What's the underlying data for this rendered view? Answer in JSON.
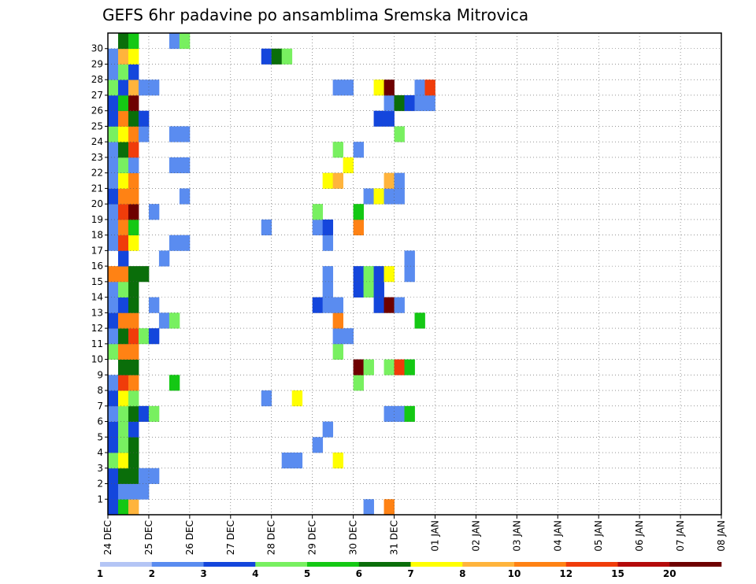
{
  "chart_data": {
    "type": "heatmap",
    "title": "GEFS 6hr padavine po ansamblima Sremska Mitrovica",
    "xlabel": "",
    "ylabel": "",
    "x_ticks": [
      "24 DEC",
      "25 DEC",
      "26 DEC",
      "27 DEC",
      "28 DEC",
      "29 DEC",
      "30 DEC",
      "31 DEC",
      "01 JAN",
      "02 JAN",
      "03 JAN",
      "04 JAN",
      "05 JAN",
      "06 JAN",
      "07 JAN",
      "08 JAN"
    ],
    "y_ticks": [
      "1",
      "2",
      "3",
      "4",
      "5",
      "6",
      "7",
      "8",
      "9",
      "10",
      "11",
      "12",
      "13",
      "14",
      "15",
      "16",
      "17",
      "18",
      "19",
      "20",
      "21",
      "22",
      "23",
      "24",
      "25",
      "26",
      "27",
      "28",
      "29",
      "30"
    ],
    "time_steps_per_day": 4,
    "members": 31,
    "grid": true,
    "colorbar": {
      "labels": [
        "1",
        "2",
        "3",
        "4",
        "5",
        "6",
        "7",
        "8",
        "10",
        "12",
        "15",
        "20"
      ],
      "colors": [
        "#b4c5f5",
        "#5a8cf0",
        "#1446dc",
        "#78f060",
        "#14c814",
        "#0a6e0a",
        "#ffff00",
        "#ffb43c",
        "#ff8214",
        "#f03c0a",
        "#b40a0a",
        "#6e0000"
      ]
    },
    "cells": [
      [
        0,
        0,
        2
      ],
      [
        0,
        1,
        4
      ],
      [
        0,
        2,
        7
      ],
      [
        0,
        25,
        1
      ],
      [
        0,
        27,
        8
      ],
      [
        1,
        0,
        2
      ],
      [
        1,
        1,
        1
      ],
      [
        1,
        2,
        1
      ],
      [
        1,
        3,
        1
      ],
      [
        2,
        0,
        2
      ],
      [
        2,
        1,
        5
      ],
      [
        2,
        2,
        5
      ],
      [
        2,
        3,
        1
      ],
      [
        2,
        4,
        1
      ],
      [
        3,
        0,
        3
      ],
      [
        3,
        1,
        6
      ],
      [
        3,
        2,
        5
      ],
      [
        3,
        17,
        1
      ],
      [
        3,
        18,
        1
      ],
      [
        3,
        22,
        6
      ],
      [
        4,
        0,
        2
      ],
      [
        4,
        1,
        3
      ],
      [
        4,
        2,
        5
      ],
      [
        4,
        20,
        1
      ],
      [
        5,
        0,
        2
      ],
      [
        5,
        1,
        3
      ],
      [
        5,
        2,
        2
      ],
      [
        5,
        21,
        1
      ],
      [
        6,
        0,
        1
      ],
      [
        6,
        1,
        3
      ],
      [
        6,
        2,
        5
      ],
      [
        6,
        3,
        2
      ],
      [
        6,
        4,
        3
      ],
      [
        6,
        27,
        1
      ],
      [
        6,
        28,
        1
      ],
      [
        6,
        29,
        4
      ],
      [
        7,
        0,
        2
      ],
      [
        7,
        1,
        6
      ],
      [
        7,
        2,
        3
      ],
      [
        7,
        15,
        1
      ],
      [
        7,
        18,
        6
      ],
      [
        8,
        0,
        1
      ],
      [
        8,
        1,
        9
      ],
      [
        8,
        2,
        8
      ],
      [
        8,
        6,
        4
      ],
      [
        8,
        24,
        3
      ],
      [
        9,
        1,
        5
      ],
      [
        9,
        2,
        5
      ],
      [
        9,
        24,
        11
      ],
      [
        9,
        25,
        3
      ],
      [
        9,
        27,
        3
      ],
      [
        9,
        28,
        9
      ],
      [
        9,
        29,
        4
      ],
      [
        10,
        0,
        3
      ],
      [
        10,
        1,
        8
      ],
      [
        10,
        2,
        8
      ],
      [
        10,
        22,
        3
      ],
      [
        11,
        0,
        1
      ],
      [
        11,
        1,
        5
      ],
      [
        11,
        2,
        9
      ],
      [
        11,
        3,
        3
      ],
      [
        11,
        4,
        2
      ],
      [
        11,
        22,
        1
      ],
      [
        11,
        23,
        1
      ],
      [
        12,
        0,
        2
      ],
      [
        12,
        1,
        8
      ],
      [
        12,
        2,
        8
      ],
      [
        12,
        5,
        1
      ],
      [
        12,
        6,
        3
      ],
      [
        12,
        22,
        8
      ],
      [
        12,
        30,
        4
      ],
      [
        13,
        0,
        1
      ],
      [
        13,
        1,
        2
      ],
      [
        13,
        2,
        5
      ],
      [
        13,
        4,
        1
      ],
      [
        13,
        20,
        2
      ],
      [
        13,
        21,
        1
      ],
      [
        13,
        22,
        1
      ],
      [
        13,
        26,
        2
      ],
      [
        13,
        27,
        11
      ],
      [
        13,
        28,
        1
      ],
      [
        14,
        0,
        1
      ],
      [
        14,
        1,
        3
      ],
      [
        14,
        2,
        5
      ],
      [
        14,
        21,
        1
      ],
      [
        14,
        24,
        2
      ],
      [
        14,
        25,
        3
      ],
      [
        14,
        26,
        2
      ],
      [
        15,
        0,
        8
      ],
      [
        15,
        1,
        8
      ],
      [
        15,
        2,
        5
      ],
      [
        15,
        3,
        5
      ],
      [
        15,
        21,
        1
      ],
      [
        15,
        24,
        2
      ],
      [
        15,
        25,
        3
      ],
      [
        15,
        26,
        2
      ],
      [
        15,
        27,
        6
      ],
      [
        15,
        29,
        1
      ],
      [
        16,
        1,
        2
      ],
      [
        16,
        5,
        1
      ],
      [
        16,
        29,
        1
      ],
      [
        17,
        0,
        1
      ],
      [
        17,
        1,
        9
      ],
      [
        17,
        2,
        6
      ],
      [
        17,
        6,
        1
      ],
      [
        17,
        7,
        1
      ],
      [
        17,
        21,
        1
      ],
      [
        18,
        0,
        1
      ],
      [
        18,
        1,
        8
      ],
      [
        18,
        2,
        4
      ],
      [
        18,
        15,
        1
      ],
      [
        18,
        20,
        1
      ],
      [
        18,
        21,
        2
      ],
      [
        18,
        24,
        8
      ],
      [
        19,
        0,
        1
      ],
      [
        19,
        1,
        9
      ],
      [
        19,
        2,
        11
      ],
      [
        19,
        4,
        1
      ],
      [
        19,
        20,
        3
      ],
      [
        19,
        24,
        4
      ],
      [
        20,
        0,
        2
      ],
      [
        20,
        1,
        8
      ],
      [
        20,
        2,
        8
      ],
      [
        20,
        7,
        1
      ],
      [
        20,
        25,
        1
      ],
      [
        20,
        26,
        6
      ],
      [
        20,
        27,
        1
      ],
      [
        20,
        28,
        1
      ],
      [
        21,
        0,
        1
      ],
      [
        21,
        1,
        6
      ],
      [
        21,
        2,
        8
      ],
      [
        21,
        21,
        6
      ],
      [
        21,
        22,
        7
      ],
      [
        21,
        27,
        7
      ],
      [
        21,
        28,
        1
      ],
      [
        22,
        0,
        1
      ],
      [
        22,
        1,
        3
      ],
      [
        22,
        2,
        1
      ],
      [
        22,
        6,
        1
      ],
      [
        22,
        7,
        1
      ],
      [
        22,
        23,
        6
      ],
      [
        23,
        0,
        1
      ],
      [
        23,
        1,
        5
      ],
      [
        23,
        2,
        9
      ],
      [
        23,
        22,
        3
      ],
      [
        23,
        24,
        1
      ],
      [
        24,
        0,
        3
      ],
      [
        24,
        1,
        6
      ],
      [
        24,
        2,
        8
      ],
      [
        24,
        3,
        1
      ],
      [
        24,
        6,
        1
      ],
      [
        24,
        7,
        1
      ],
      [
        24,
        28,
        3
      ],
      [
        25,
        0,
        2
      ],
      [
        25,
        1,
        8
      ],
      [
        25,
        2,
        5
      ],
      [
        25,
        3,
        2
      ],
      [
        25,
        26,
        2
      ],
      [
        25,
        27,
        2
      ],
      [
        26,
        0,
        2
      ],
      [
        26,
        1,
        4
      ],
      [
        26,
        2,
        11
      ],
      [
        26,
        27,
        1
      ],
      [
        26,
        28,
        5
      ],
      [
        26,
        29,
        2
      ],
      [
        26,
        30,
        1
      ],
      [
        26,
        31,
        1
      ],
      [
        27,
        0,
        3
      ],
      [
        27,
        1,
        2
      ],
      [
        27,
        2,
        7
      ],
      [
        27,
        3,
        1
      ],
      [
        27,
        4,
        1
      ],
      [
        27,
        22,
        1
      ],
      [
        27,
        23,
        1
      ],
      [
        27,
        26,
        6
      ],
      [
        27,
        27,
        11
      ],
      [
        27,
        30,
        1
      ],
      [
        27,
        31,
        9
      ],
      [
        28,
        0,
        1
      ],
      [
        28,
        1,
        3
      ],
      [
        28,
        2,
        2
      ],
      [
        29,
        0,
        1
      ],
      [
        29,
        1,
        7
      ],
      [
        29,
        2,
        6
      ],
      [
        29,
        15,
        2
      ],
      [
        29,
        16,
        5
      ],
      [
        29,
        17,
        3
      ],
      [
        30,
        1,
        5
      ],
      [
        30,
        2,
        4
      ],
      [
        30,
        6,
        1
      ],
      [
        30,
        7,
        3
      ]
    ]
  }
}
